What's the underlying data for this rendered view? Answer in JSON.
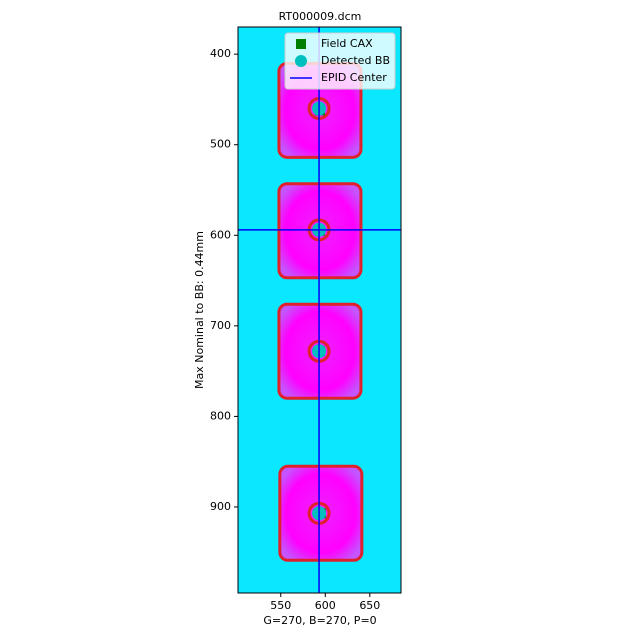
{
  "chart_data": {
    "type": "image",
    "title": "RT000009.dcm",
    "xlabel": "G=270, B=270, P=0",
    "ylabel": "Max Nominal to BB: 0.44mm",
    "xlim": [
      502,
      685
    ],
    "xticks": [
      550,
      600,
      650
    ],
    "ylim": [
      995,
      370
    ],
    "yticks": [
      400,
      500,
      600,
      700,
      800,
      900
    ],
    "background_color": "#0ae8ff",
    "field_color": "#ff00ff",
    "legend_position": "upper right",
    "series": [
      {
        "name": "Field CAX",
        "color": "#008000",
        "marker": "square",
        "x": [
          594,
          594,
          594,
          595
        ],
        "y": [
          462,
          595,
          728,
          907
        ]
      },
      {
        "name": "Detected BB",
        "color": "#00bfbf",
        "marker": "circle",
        "x": [
          593,
          593,
          593,
          593
        ],
        "y": [
          460,
          594,
          728,
          907
        ]
      },
      {
        "name": "EPID Center",
        "color": "#0000ff",
        "marker": "line",
        "x": [
          593
        ],
        "y": [
          594
        ]
      }
    ]
  }
}
